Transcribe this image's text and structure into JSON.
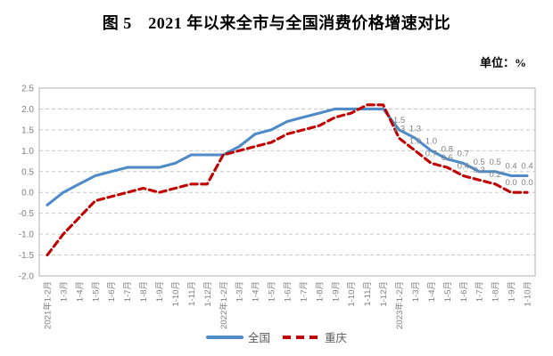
{
  "title": "图 5　2021 年以来全市与全国消费价格增速对比",
  "unit_label": "单位：%",
  "colors": {
    "national_line": "#4f8bc7",
    "chongqing_line": "#c00000",
    "grid": "#c9c9c9",
    "frame": "#bfbfbf",
    "axis_text": "#808080",
    "data_label_text": "#808080",
    "legend_text": "#595959"
  },
  "chart_data": {
    "type": "line",
    "title": "图 5　2021 年以来全市与全国消费价格增速对比",
    "unit": "单位：%",
    "categories": [
      "2021年1-2月",
      "1-3月",
      "1-4月",
      "1-5月",
      "1-6月",
      "1-7月",
      "1-8月",
      "1-9月",
      "1-10月",
      "1-11月",
      "1-12月",
      "2022年1-2月",
      "1-3月",
      "1-4月",
      "1-5月",
      "1-6月",
      "1-7月",
      "1-8月",
      "1-9月",
      "1-10月",
      "1-11月",
      "1-12月",
      "2023年1-2月",
      "1-3月",
      "1-4月",
      "1-5月",
      "1-6月",
      "1-7月",
      "1-8月",
      "1-9月",
      "1-10月"
    ],
    "series": [
      {
        "name": "全国",
        "style": "solid",
        "values": [
          -0.3,
          0.0,
          0.2,
          0.4,
          0.5,
          0.6,
          0.6,
          0.6,
          0.7,
          0.9,
          0.9,
          0.9,
          1.1,
          1.4,
          1.5,
          1.7,
          1.8,
          1.9,
          2.0,
          2.0,
          2.0,
          2.0,
          1.5,
          1.3,
          1.0,
          0.8,
          0.7,
          0.5,
          0.5,
          0.4,
          0.4
        ]
      },
      {
        "name": "重庆",
        "style": "dashed",
        "values": [
          -1.5,
          -1.0,
          -0.6,
          -0.2,
          -0.1,
          0.0,
          0.1,
          0.0,
          0.1,
          0.2,
          0.2,
          0.9,
          1.0,
          1.1,
          1.2,
          1.4,
          1.5,
          1.6,
          1.8,
          1.9,
          2.1,
          2.1,
          1.3,
          1.0,
          0.7,
          0.6,
          0.4,
          0.3,
          0.2,
          0.0,
          0.0
        ]
      }
    ],
    "labeled_from_index": 22,
    "data_labels_2023": {
      "全国": [
        "1.5",
        "1.3",
        "1.0",
        "0.8",
        "0.7",
        "0.5",
        "0.5",
        "0.4",
        "0.4"
      ],
      "重庆": [
        "1.3",
        "1.0",
        "0.7",
        "0.6",
        "0.4",
        "0.3",
        "0.2",
        "0.0",
        "0.0"
      ]
    },
    "ylim": [
      -2.0,
      2.5
    ],
    "ytick_step": 0.5,
    "y_ticks": [
      "2.5",
      "2.0",
      "1.5",
      "1.0",
      "0.5",
      "0.0",
      "-0.5",
      "-1.0",
      "-1.5",
      "-2.0"
    ],
    "grid": true,
    "legend_position": "bottom"
  }
}
